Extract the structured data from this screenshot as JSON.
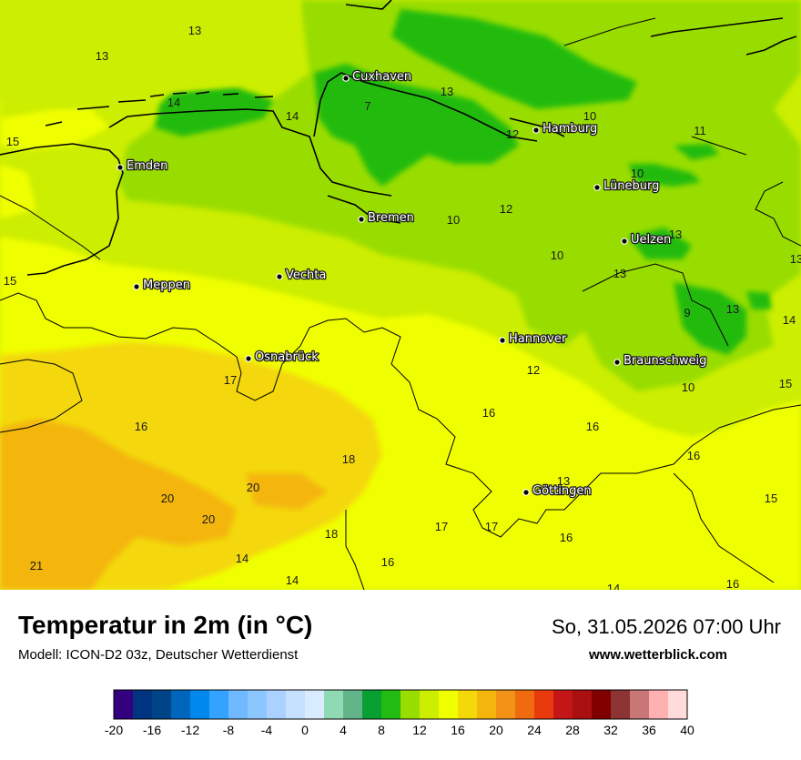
{
  "map": {
    "title": "Temperatur in 2m (in °C)",
    "model": "Modell: ICON-D2 03z, Deutscher Wetterdienst",
    "datetime": "So, 31.05.2026 07:00 Uhr",
    "website": "www.wetterblick.com",
    "cities": [
      {
        "name": "Cuxhaven"
      },
      {
        "name": "Hamburg"
      },
      {
        "name": "Emden"
      },
      {
        "name": "Lüneburg"
      },
      {
        "name": "Bremen"
      },
      {
        "name": "Uelzen"
      },
      {
        "name": "Vechta"
      },
      {
        "name": "Meppen"
      },
      {
        "name": "Osnabrück"
      },
      {
        "name": "Hannover"
      },
      {
        "name": "Braunschweig"
      },
      {
        "name": "Göttingen"
      }
    ],
    "values": [
      "13",
      "13",
      "7",
      "13",
      "14",
      "14",
      "15",
      "10",
      "12",
      "11",
      "10",
      "12",
      "10",
      "13",
      "15",
      "10",
      "13",
      "13",
      "9",
      "13",
      "14",
      "12",
      "10",
      "15",
      "16",
      "17",
      "16",
      "18",
      "16",
      "20",
      "20",
      "13",
      "15",
      "16",
      "20",
      "17",
      "17",
      "18",
      "16",
      "16",
      "14",
      "14",
      "21",
      "14",
      "16"
    ]
  },
  "legend": {
    "colors": [
      "#33007f",
      "#003380",
      "#004488",
      "#0066bb",
      "#0088ee",
      "#33a3ff",
      "#70b8ff",
      "#8cc6ff",
      "#aad1ff",
      "#c6e0ff",
      "#d8ebff",
      "#90d9b5",
      "#64b48a",
      "#08a032",
      "#22bb11",
      "#99dd00",
      "#ccee00",
      "#f0ff00",
      "#f4d80a",
      "#f4b60c",
      "#f29216",
      "#f06b10",
      "#e83a0c",
      "#c41616",
      "#aa1010",
      "#800000",
      "#8c3333",
      "#c87676",
      "#ffb0b0",
      "#ffdbdb"
    ],
    "ticks": [
      "-20",
      "-16",
      "-12",
      "-8",
      "-4",
      "0",
      "4",
      "8",
      "12",
      "16",
      "20",
      "24",
      "28",
      "32",
      "36",
      "40"
    ]
  }
}
